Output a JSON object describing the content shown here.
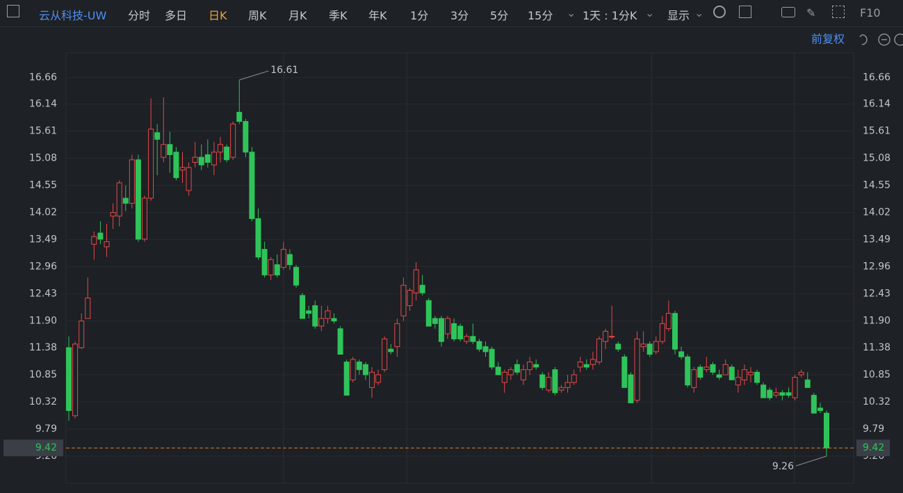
{
  "toolbar": {
    "symbol": "云从科技-UW",
    "tabs": [
      "分时",
      "多日",
      "日K",
      "周K",
      "月K",
      "季K",
      "年K",
      "1分",
      "3分",
      "5分",
      "15分"
    ],
    "interval": "1天 : 1分K",
    "display": "显示",
    "f10": "F10"
  },
  "adjust": "前复权",
  "chart_data": {
    "type": "candlestick",
    "ylim": [
      8.73,
      17.14
    ],
    "yticks": [
      16.66,
      16.14,
      15.61,
      15.08,
      14.55,
      14.02,
      13.49,
      12.96,
      12.43,
      {
        "value": 11.9,
        "label": "11.90"
      },
      11.38,
      10.85,
      10.32,
      9.79,
      9.26
    ],
    "up_color": "#e8494a",
    "down_color": "#2fc45a",
    "high_label": 16.61,
    "low_label": 9.26,
    "last_price": 9.42,
    "candles": [
      {
        "open": 11.38,
        "high": 11.6,
        "low": 9.95,
        "close": 10.15
      },
      {
        "open": 10.05,
        "high": 11.5,
        "low": 10.0,
        "close": 11.45
      },
      {
        "open": 11.38,
        "high": 12.05,
        "low": 11.35,
        "close": 11.9
      },
      {
        "open": 11.95,
        "high": 12.75,
        "low": 11.95,
        "close": 12.35
      },
      {
        "open": 13.4,
        "high": 13.65,
        "low": 13.1,
        "close": 13.55
      },
      {
        "open": 13.62,
        "high": 13.85,
        "low": 13.4,
        "close": 13.5
      },
      {
        "open": 13.35,
        "high": 13.8,
        "low": 13.15,
        "close": 13.45
      },
      {
        "open": 13.95,
        "high": 14.2,
        "low": 13.7,
        "close": 14.02
      },
      {
        "open": 13.95,
        "high": 14.65,
        "low": 13.75,
        "close": 14.6
      },
      {
        "open": 14.3,
        "high": 14.55,
        "low": 14.05,
        "close": 14.2
      },
      {
        "open": 14.2,
        "high": 15.15,
        "low": 14.1,
        "close": 15.05
      },
      {
        "open": 15.05,
        "high": 15.15,
        "low": 13.45,
        "close": 13.5
      },
      {
        "open": 13.5,
        "high": 14.35,
        "low": 13.45,
        "close": 14.3
      },
      {
        "open": 14.3,
        "high": 16.25,
        "low": 14.25,
        "close": 15.65
      },
      {
        "open": 15.58,
        "high": 15.75,
        "low": 14.75,
        "close": 15.45
      },
      {
        "open": 15.1,
        "high": 16.27,
        "low": 15.0,
        "close": 15.35
      },
      {
        "open": 15.35,
        "high": 15.6,
        "low": 14.8,
        "close": 15.15
      },
      {
        "open": 15.2,
        "high": 15.3,
        "low": 14.65,
        "close": 14.7
      },
      {
        "open": 14.85,
        "high": 15.2,
        "low": 14.6,
        "close": 14.9
      },
      {
        "open": 14.45,
        "high": 15.0,
        "low": 14.35,
        "close": 14.9
      },
      {
        "open": 15.0,
        "high": 15.4,
        "low": 14.9,
        "close": 15.1
      },
      {
        "open": 15.1,
        "high": 15.35,
        "low": 14.85,
        "close": 14.95
      },
      {
        "open": 15.15,
        "high": 15.45,
        "low": 14.9,
        "close": 15.0
      },
      {
        "open": 14.95,
        "high": 15.4,
        "low": 14.75,
        "close": 15.2
      },
      {
        "open": 15.2,
        "high": 15.5,
        "low": 15.0,
        "close": 15.35
      },
      {
        "open": 15.3,
        "high": 15.35,
        "low": 15.0,
        "close": 15.05
      },
      {
        "open": 15.1,
        "high": 15.8,
        "low": 15.05,
        "close": 15.75
      },
      {
        "open": 15.98,
        "high": 16.61,
        "low": 15.75,
        "close": 15.8
      },
      {
        "open": 15.8,
        "high": 15.85,
        "low": 15.1,
        "close": 15.2
      },
      {
        "open": 15.2,
        "high": 15.3,
        "low": 13.85,
        "close": 13.9
      },
      {
        "open": 13.9,
        "high": 14.1,
        "low": 13.1,
        "close": 13.15
      },
      {
        "open": 13.3,
        "high": 13.45,
        "low": 12.75,
        "close": 12.8
      },
      {
        "open": 12.8,
        "high": 13.15,
        "low": 12.7,
        "close": 13.1
      },
      {
        "open": 13.0,
        "high": 13.2,
        "low": 12.75,
        "close": 12.8
      },
      {
        "open": 12.95,
        "high": 13.45,
        "low": 12.9,
        "close": 13.3
      },
      {
        "open": 13.2,
        "high": 13.3,
        "low": 12.9,
        "close": 13.0
      },
      {
        "open": 12.95,
        "high": 13.0,
        "low": 12.55,
        "close": 12.6
      },
      {
        "open": 12.4,
        "high": 12.45,
        "low": 11.95,
        "close": 11.95
      },
      {
        "open": 12.1,
        "high": 12.2,
        "low": 11.95,
        "close": 12.05
      },
      {
        "open": 12.2,
        "high": 12.3,
        "low": 11.75,
        "close": 11.8
      },
      {
        "open": 11.8,
        "high": 12.2,
        "low": 11.7,
        "close": 11.95
      },
      {
        "open": 11.95,
        "high": 12.2,
        "low": 11.85,
        "close": 12.1
      },
      {
        "open": 11.95,
        "high": 12.05,
        "low": 11.85,
        "close": 11.9
      },
      {
        "open": 11.75,
        "high": 11.8,
        "low": 11.25,
        "close": 11.25
      },
      {
        "open": 11.1,
        "high": 11.15,
        "low": 10.45,
        "close": 10.45
      },
      {
        "open": 10.75,
        "high": 11.2,
        "low": 10.7,
        "close": 11.15
      },
      {
        "open": 11.1,
        "high": 11.15,
        "low": 10.85,
        "close": 10.95
      },
      {
        "open": 11.05,
        "high": 11.1,
        "low": 10.75,
        "close": 10.85
      },
      {
        "open": 10.6,
        "high": 11.0,
        "low": 10.4,
        "close": 10.9
      },
      {
        "open": 10.7,
        "high": 10.95,
        "low": 10.65,
        "close": 10.85
      },
      {
        "open": 10.95,
        "high": 11.6,
        "low": 10.9,
        "close": 11.55
      },
      {
        "open": 11.35,
        "high": 11.45,
        "low": 11.25,
        "close": 11.3
      },
      {
        "open": 11.4,
        "high": 11.95,
        "low": 11.2,
        "close": 11.85
      },
      {
        "open": 12.0,
        "high": 12.75,
        "low": 11.9,
        "close": 12.6
      },
      {
        "open": 12.2,
        "high": 12.55,
        "low": 12.1,
        "close": 12.5
      },
      {
        "open": 12.45,
        "high": 13.05,
        "low": 12.3,
        "close": 12.9
      },
      {
        "open": 12.6,
        "high": 12.8,
        "low": 12.4,
        "close": 12.45
      },
      {
        "open": 12.3,
        "high": 12.35,
        "low": 11.8,
        "close": 11.8
      },
      {
        "open": 11.95,
        "high": 12.0,
        "low": 11.75,
        "close": 11.85
      },
      {
        "open": 11.95,
        "high": 12.0,
        "low": 11.4,
        "close": 11.5
      },
      {
        "open": 11.65,
        "high": 12.0,
        "low": 11.55,
        "close": 11.95
      },
      {
        "open": 11.85,
        "high": 11.95,
        "low": 11.5,
        "close": 11.55
      },
      {
        "open": 11.8,
        "high": 11.85,
        "low": 11.5,
        "close": 11.55
      },
      {
        "open": 11.5,
        "high": 11.65,
        "low": 11.45,
        "close": 11.6
      },
      {
        "open": 11.6,
        "high": 11.85,
        "low": 11.45,
        "close": 11.5
      },
      {
        "open": 11.5,
        "high": 11.55,
        "low": 11.3,
        "close": 11.35
      },
      {
        "open": 11.4,
        "high": 11.5,
        "low": 11.2,
        "close": 11.3
      },
      {
        "open": 11.35,
        "high": 11.4,
        "low": 10.95,
        "close": 11.0
      },
      {
        "open": 11.0,
        "high": 11.1,
        "low": 10.85,
        "close": 10.85
      },
      {
        "open": 10.7,
        "high": 10.95,
        "low": 10.5,
        "close": 10.9
      },
      {
        "open": 10.85,
        "high": 11.0,
        "low": 10.75,
        "close": 10.95
      },
      {
        "open": 11.05,
        "high": 11.15,
        "low": 10.85,
        "close": 10.9
      },
      {
        "open": 10.75,
        "high": 11.05,
        "low": 10.65,
        "close": 10.95
      },
      {
        "open": 10.95,
        "high": 11.2,
        "low": 10.85,
        "close": 11.1
      },
      {
        "open": 11.05,
        "high": 11.15,
        "low": 10.95,
        "close": 11.0
      },
      {
        "open": 10.85,
        "high": 10.9,
        "low": 10.55,
        "close": 10.6
      },
      {
        "open": 10.55,
        "high": 10.9,
        "low": 10.5,
        "close": 10.8
      },
      {
        "open": 10.95,
        "high": 11.0,
        "low": 10.45,
        "close": 10.5
      },
      {
        "open": 10.55,
        "high": 10.65,
        "low": 10.5,
        "close": 10.6
      },
      {
        "open": 10.6,
        "high": 10.85,
        "low": 10.5,
        "close": 10.7
      },
      {
        "open": 10.7,
        "high": 10.95,
        "low": 10.65,
        "close": 10.85
      },
      {
        "open": 11.0,
        "high": 11.2,
        "low": 10.9,
        "close": 11.1
      },
      {
        "open": 11.05,
        "high": 11.15,
        "low": 10.95,
        "close": 11.0
      },
      {
        "open": 11.05,
        "high": 11.3,
        "low": 10.95,
        "close": 11.15
      },
      {
        "open": 11.1,
        "high": 11.6,
        "low": 11.05,
        "close": 11.55
      },
      {
        "open": 11.5,
        "high": 11.75,
        "low": 11.35,
        "close": 11.7
      },
      {
        "open": 11.6,
        "high": 12.2,
        "low": 11.55,
        "close": 11.6
      },
      {
        "open": 11.45,
        "high": 11.5,
        "low": 11.3,
        "close": 11.35
      },
      {
        "open": 11.2,
        "high": 11.25,
        "low": 10.6,
        "close": 10.6
      },
      {
        "open": 10.85,
        "high": 10.9,
        "low": 10.3,
        "close": 10.3
      },
      {
        "open": 10.35,
        "high": 11.7,
        "low": 10.3,
        "close": 11.55
      },
      {
        "open": 11.4,
        "high": 11.7,
        "low": 11.3,
        "close": 11.45
      },
      {
        "open": 11.45,
        "high": 11.5,
        "low": 11.2,
        "close": 11.25
      },
      {
        "open": 11.3,
        "high": 11.6,
        "low": 11.25,
        "close": 11.5
      },
      {
        "open": 11.5,
        "high": 12.0,
        "low": 11.45,
        "close": 11.85
      },
      {
        "open": 11.75,
        "high": 12.3,
        "low": 11.7,
        "close": 12.05
      },
      {
        "open": 12.05,
        "high": 12.1,
        "low": 11.25,
        "close": 11.35
      },
      {
        "open": 11.3,
        "high": 11.4,
        "low": 11.15,
        "close": 11.2
      },
      {
        "open": 11.2,
        "high": 11.25,
        "low": 10.6,
        "close": 10.65
      },
      {
        "open": 10.6,
        "high": 11.0,
        "low": 10.5,
        "close": 10.95
      },
      {
        "open": 11.0,
        "high": 11.05,
        "low": 10.75,
        "close": 10.8
      },
      {
        "open": 10.95,
        "high": 11.2,
        "low": 10.9,
        "close": 11.0
      },
      {
        "open": 11.05,
        "high": 11.1,
        "low": 10.85,
        "close": 10.9
      },
      {
        "open": 10.85,
        "high": 10.95,
        "low": 10.75,
        "close": 10.8
      },
      {
        "open": 10.85,
        "high": 11.15,
        "low": 10.85,
        "close": 11.05
      },
      {
        "open": 11.0,
        "high": 11.05,
        "low": 10.75,
        "close": 10.75
      },
      {
        "open": 10.65,
        "high": 10.95,
        "low": 10.5,
        "close": 10.8
      },
      {
        "open": 10.75,
        "high": 11.05,
        "low": 10.65,
        "close": 10.95
      },
      {
        "open": 10.85,
        "high": 11.0,
        "low": 10.7,
        "close": 10.9
      },
      {
        "open": 10.9,
        "high": 10.95,
        "low": 10.65,
        "close": 10.7
      },
      {
        "open": 10.65,
        "high": 10.7,
        "low": 10.4,
        "close": 10.4
      },
      {
        "open": 10.55,
        "high": 10.6,
        "low": 10.35,
        "close": 10.4
      },
      {
        "open": 10.45,
        "high": 10.6,
        "low": 10.4,
        "close": 10.5
      },
      {
        "open": 10.5,
        "high": 10.55,
        "low": 10.35,
        "close": 10.45
      },
      {
        "open": 10.5,
        "high": 10.6,
        "low": 10.4,
        "close": 10.45
      },
      {
        "open": 10.4,
        "high": 10.85,
        "low": 10.35,
        "close": 10.8
      },
      {
        "open": 10.85,
        "high": 10.95,
        "low": 10.8,
        "close": 10.9
      },
      {
        "open": 10.75,
        "high": 10.9,
        "low": 10.6,
        "close": 10.6
      },
      {
        "open": 10.45,
        "high": 10.5,
        "low": 10.1,
        "close": 10.1
      },
      {
        "open": 10.2,
        "high": 10.3,
        "low": 10.1,
        "close": 10.15
      },
      {
        "open": 10.1,
        "high": 10.15,
        "low": 9.26,
        "close": 9.42
      }
    ]
  }
}
